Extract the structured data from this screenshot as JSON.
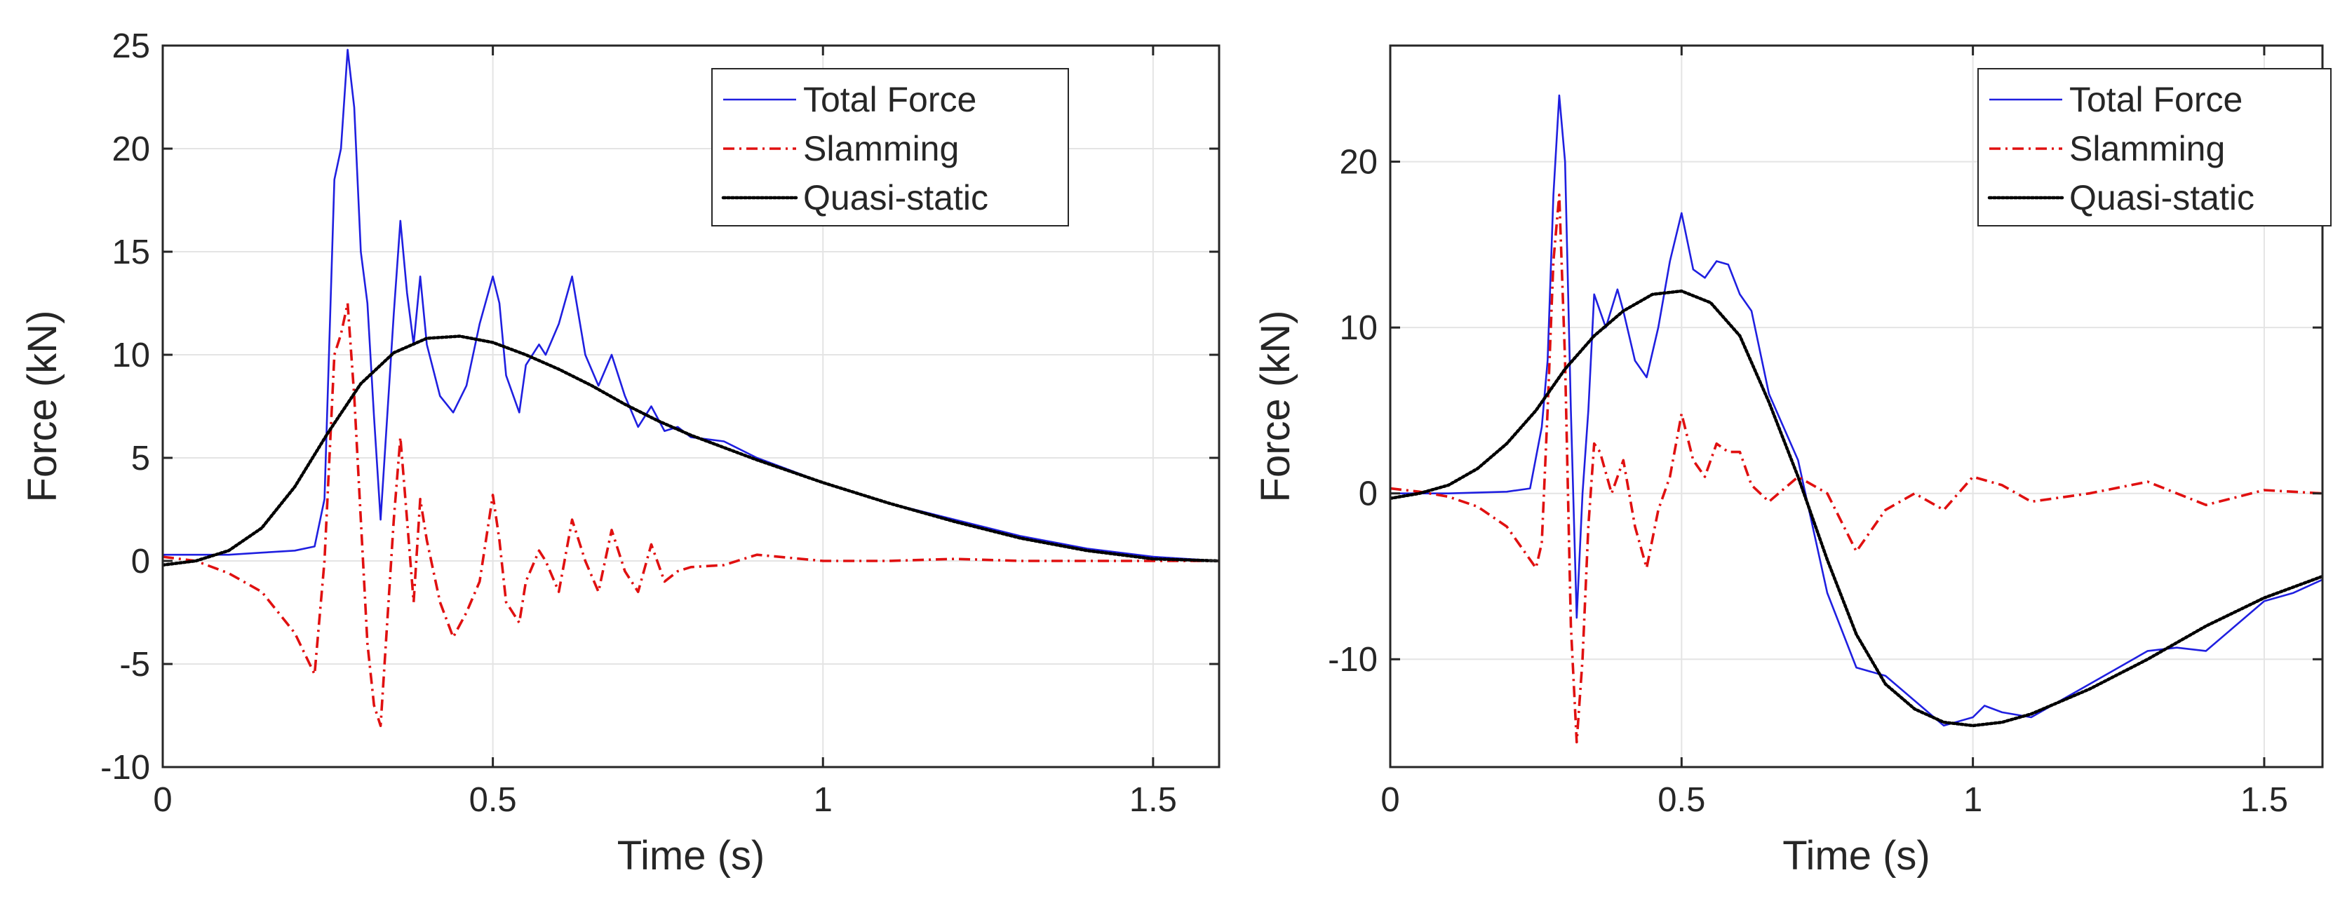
{
  "chart_data": [
    {
      "type": "line",
      "title": "",
      "xlabel": "Time (s)",
      "ylabel": "Force (kN)",
      "xlim": [
        0,
        1.6
      ],
      "ylim": [
        -10,
        25
      ],
      "xticks": [
        0,
        0.5,
        1,
        1.5
      ],
      "xtick_labels": [
        "0",
        "0.5",
        "1",
        "1.5"
      ],
      "yticks": [
        -10,
        -5,
        0,
        5,
        10,
        15,
        20,
        25
      ],
      "ytick_labels": [
        "-10",
        "-5",
        "0",
        "5",
        "10",
        "15",
        "20",
        "25"
      ],
      "grid": true,
      "legend_position": "top-right",
      "series": [
        {
          "name": "Total Force",
          "color": "#1f1fe0",
          "style": "solid",
          "x": [
            0,
            0.05,
            0.1,
            0.15,
            0.2,
            0.23,
            0.245,
            0.26,
            0.27,
            0.28,
            0.29,
            0.3,
            0.31,
            0.32,
            0.33,
            0.34,
            0.35,
            0.36,
            0.37,
            0.38,
            0.39,
            0.4,
            0.42,
            0.44,
            0.46,
            0.48,
            0.5,
            0.51,
            0.52,
            0.54,
            0.55,
            0.57,
            0.58,
            0.6,
            0.62,
            0.64,
            0.66,
            0.68,
            0.7,
            0.72,
            0.74,
            0.76,
            0.78,
            0.8,
            0.85,
            0.9,
            1.0,
            1.1,
            1.2,
            1.3,
            1.4,
            1.5,
            1.6
          ],
          "y": [
            0.3,
            0.3,
            0.3,
            0.4,
            0.5,
            0.7,
            3.0,
            18.5,
            20.0,
            24.8,
            22.0,
            15.0,
            12.5,
            7.0,
            2.0,
            7.0,
            12.0,
            16.5,
            13.0,
            10.5,
            13.8,
            10.5,
            8.0,
            7.2,
            8.5,
            11.5,
            13.8,
            12.5,
            9.0,
            7.2,
            9.5,
            10.5,
            10.0,
            11.5,
            13.8,
            10.0,
            8.5,
            10.0,
            8.0,
            6.5,
            7.5,
            6.3,
            6.5,
            6.0,
            5.8,
            5.0,
            3.8,
            2.8,
            2.0,
            1.2,
            0.6,
            0.2,
            0.0
          ]
        },
        {
          "name": "Slamming",
          "color": "#e01010",
          "style": "dashdot",
          "x": [
            0,
            0.05,
            0.1,
            0.15,
            0.2,
            0.23,
            0.245,
            0.26,
            0.27,
            0.28,
            0.29,
            0.3,
            0.31,
            0.32,
            0.33,
            0.34,
            0.35,
            0.36,
            0.37,
            0.38,
            0.39,
            0.4,
            0.42,
            0.44,
            0.46,
            0.48,
            0.5,
            0.51,
            0.52,
            0.54,
            0.55,
            0.57,
            0.58,
            0.6,
            0.62,
            0.64,
            0.66,
            0.68,
            0.7,
            0.72,
            0.74,
            0.76,
            0.78,
            0.8,
            0.85,
            0.9,
            1.0,
            1.1,
            1.2,
            1.3,
            1.4,
            1.5,
            1.6
          ],
          "y": [
            0.2,
            0.0,
            -0.6,
            -1.5,
            -3.5,
            -5.5,
            0.0,
            10.0,
            11.0,
            12.5,
            8.0,
            2.0,
            -4.0,
            -7.0,
            -8.0,
            -3.0,
            2.0,
            6.0,
            2.0,
            -2.0,
            3.0,
            1.0,
            -2.0,
            -3.7,
            -2.5,
            -1.0,
            3.2,
            1.0,
            -2.0,
            -3.0,
            -1.0,
            0.5,
            0.0,
            -1.5,
            2.0,
            0.0,
            -1.5,
            1.5,
            -0.5,
            -1.5,
            0.8,
            -1.0,
            -0.5,
            -0.3,
            -0.2,
            0.3,
            0.0,
            0.0,
            0.1,
            0.0,
            0.0,
            0.0,
            0.0
          ]
        },
        {
          "name": "Quasi-static",
          "color": "#000000",
          "style": "dotted",
          "x": [
            0,
            0.05,
            0.1,
            0.15,
            0.2,
            0.25,
            0.3,
            0.35,
            0.4,
            0.45,
            0.5,
            0.55,
            0.6,
            0.65,
            0.7,
            0.75,
            0.8,
            0.85,
            0.9,
            1.0,
            1.1,
            1.2,
            1.3,
            1.4,
            1.5,
            1.6
          ],
          "y": [
            -0.2,
            0.0,
            0.5,
            1.6,
            3.6,
            6.2,
            8.6,
            10.1,
            10.8,
            10.9,
            10.6,
            10.0,
            9.3,
            8.5,
            7.6,
            6.8,
            6.1,
            5.5,
            4.9,
            3.8,
            2.8,
            1.9,
            1.1,
            0.5,
            0.1,
            0.0
          ]
        }
      ]
    },
    {
      "type": "line",
      "title": "",
      "xlabel": "Time (s)",
      "ylabel": "Force (kN)",
      "xlim": [
        0,
        1.6
      ],
      "ylim": [
        -16.5,
        27
      ],
      "xticks": [
        0,
        0.5,
        1,
        1.5
      ],
      "xtick_labels": [
        "0",
        "0.5",
        "1",
        "1.5"
      ],
      "yticks": [
        -10,
        0,
        10,
        20
      ],
      "ytick_labels": [
        "-10",
        "0",
        "10",
        "20"
      ],
      "grid": true,
      "legend_position": "top-right",
      "series": [
        {
          "name": "Total Force",
          "color": "#1f1fe0",
          "style": "solid",
          "x": [
            0,
            0.1,
            0.2,
            0.24,
            0.26,
            0.27,
            0.28,
            0.29,
            0.3,
            0.31,
            0.32,
            0.33,
            0.34,
            0.35,
            0.37,
            0.39,
            0.4,
            0.42,
            0.44,
            0.46,
            0.48,
            0.5,
            0.52,
            0.54,
            0.56,
            0.58,
            0.6,
            0.62,
            0.65,
            0.7,
            0.75,
            0.8,
            0.85,
            0.9,
            0.95,
            1.0,
            1.02,
            1.05,
            1.1,
            1.15,
            1.2,
            1.25,
            1.3,
            1.35,
            1.4,
            1.45,
            1.5,
            1.55,
            1.6
          ],
          "y": [
            0.0,
            0.0,
            0.1,
            0.3,
            4.0,
            8.0,
            18.0,
            24.0,
            20.0,
            5.0,
            -7.5,
            0.0,
            5.0,
            12.0,
            10.0,
            12.3,
            11.0,
            8.0,
            7.0,
            10.0,
            14.0,
            16.9,
            13.5,
            13.0,
            14.0,
            13.8,
            12.0,
            11.0,
            6.0,
            2.0,
            -6.0,
            -10.5,
            -11.0,
            -12.5,
            -14.0,
            -13.5,
            -12.8,
            -13.2,
            -13.5,
            -12.5,
            -11.5,
            -10.5,
            -9.5,
            -9.3,
            -9.5,
            -8.0,
            -6.5,
            -6.0,
            -5.2
          ]
        },
        {
          "name": "Slamming",
          "color": "#e01010",
          "style": "dashdot",
          "x": [
            0,
            0.05,
            0.1,
            0.15,
            0.2,
            0.25,
            0.26,
            0.27,
            0.28,
            0.29,
            0.3,
            0.31,
            0.32,
            0.33,
            0.34,
            0.35,
            0.36,
            0.38,
            0.4,
            0.42,
            0.44,
            0.46,
            0.48,
            0.5,
            0.52,
            0.54,
            0.56,
            0.58,
            0.6,
            0.62,
            0.65,
            0.7,
            0.75,
            0.8,
            0.85,
            0.9,
            0.95,
            1.0,
            1.05,
            1.1,
            1.2,
            1.3,
            1.4,
            1.5,
            1.6
          ],
          "y": [
            0.3,
            0.1,
            -0.2,
            -0.8,
            -2.0,
            -4.5,
            -3.0,
            5.0,
            14.0,
            18.0,
            8.0,
            -8.0,
            -15.0,
            -10.0,
            -2.0,
            3.0,
            2.5,
            0.0,
            2.0,
            -2.0,
            -4.5,
            -1.0,
            1.0,
            4.8,
            2.0,
            1.0,
            3.0,
            2.5,
            2.5,
            0.5,
            -0.5,
            1.0,
            0.0,
            -3.5,
            -1.0,
            0.0,
            -1.0,
            1.0,
            0.5,
            -0.5,
            0.0,
            0.7,
            -0.7,
            0.2,
            0.0
          ]
        },
        {
          "name": "Quasi-static",
          "color": "#000000",
          "style": "dotted",
          "x": [
            0,
            0.05,
            0.1,
            0.15,
            0.2,
            0.25,
            0.3,
            0.35,
            0.4,
            0.45,
            0.5,
            0.55,
            0.6,
            0.65,
            0.7,
            0.75,
            0.8,
            0.85,
            0.9,
            0.95,
            1.0,
            1.05,
            1.1,
            1.2,
            1.3,
            1.4,
            1.5,
            1.6
          ],
          "y": [
            -0.3,
            0.0,
            0.5,
            1.5,
            3.0,
            5.0,
            7.5,
            9.5,
            11.0,
            12.0,
            12.2,
            11.5,
            9.5,
            5.5,
            1.0,
            -4.0,
            -8.5,
            -11.5,
            -13.0,
            -13.8,
            -14.0,
            -13.8,
            -13.3,
            -11.8,
            -10.0,
            -8.0,
            -6.3,
            -5.0
          ]
        }
      ]
    }
  ]
}
